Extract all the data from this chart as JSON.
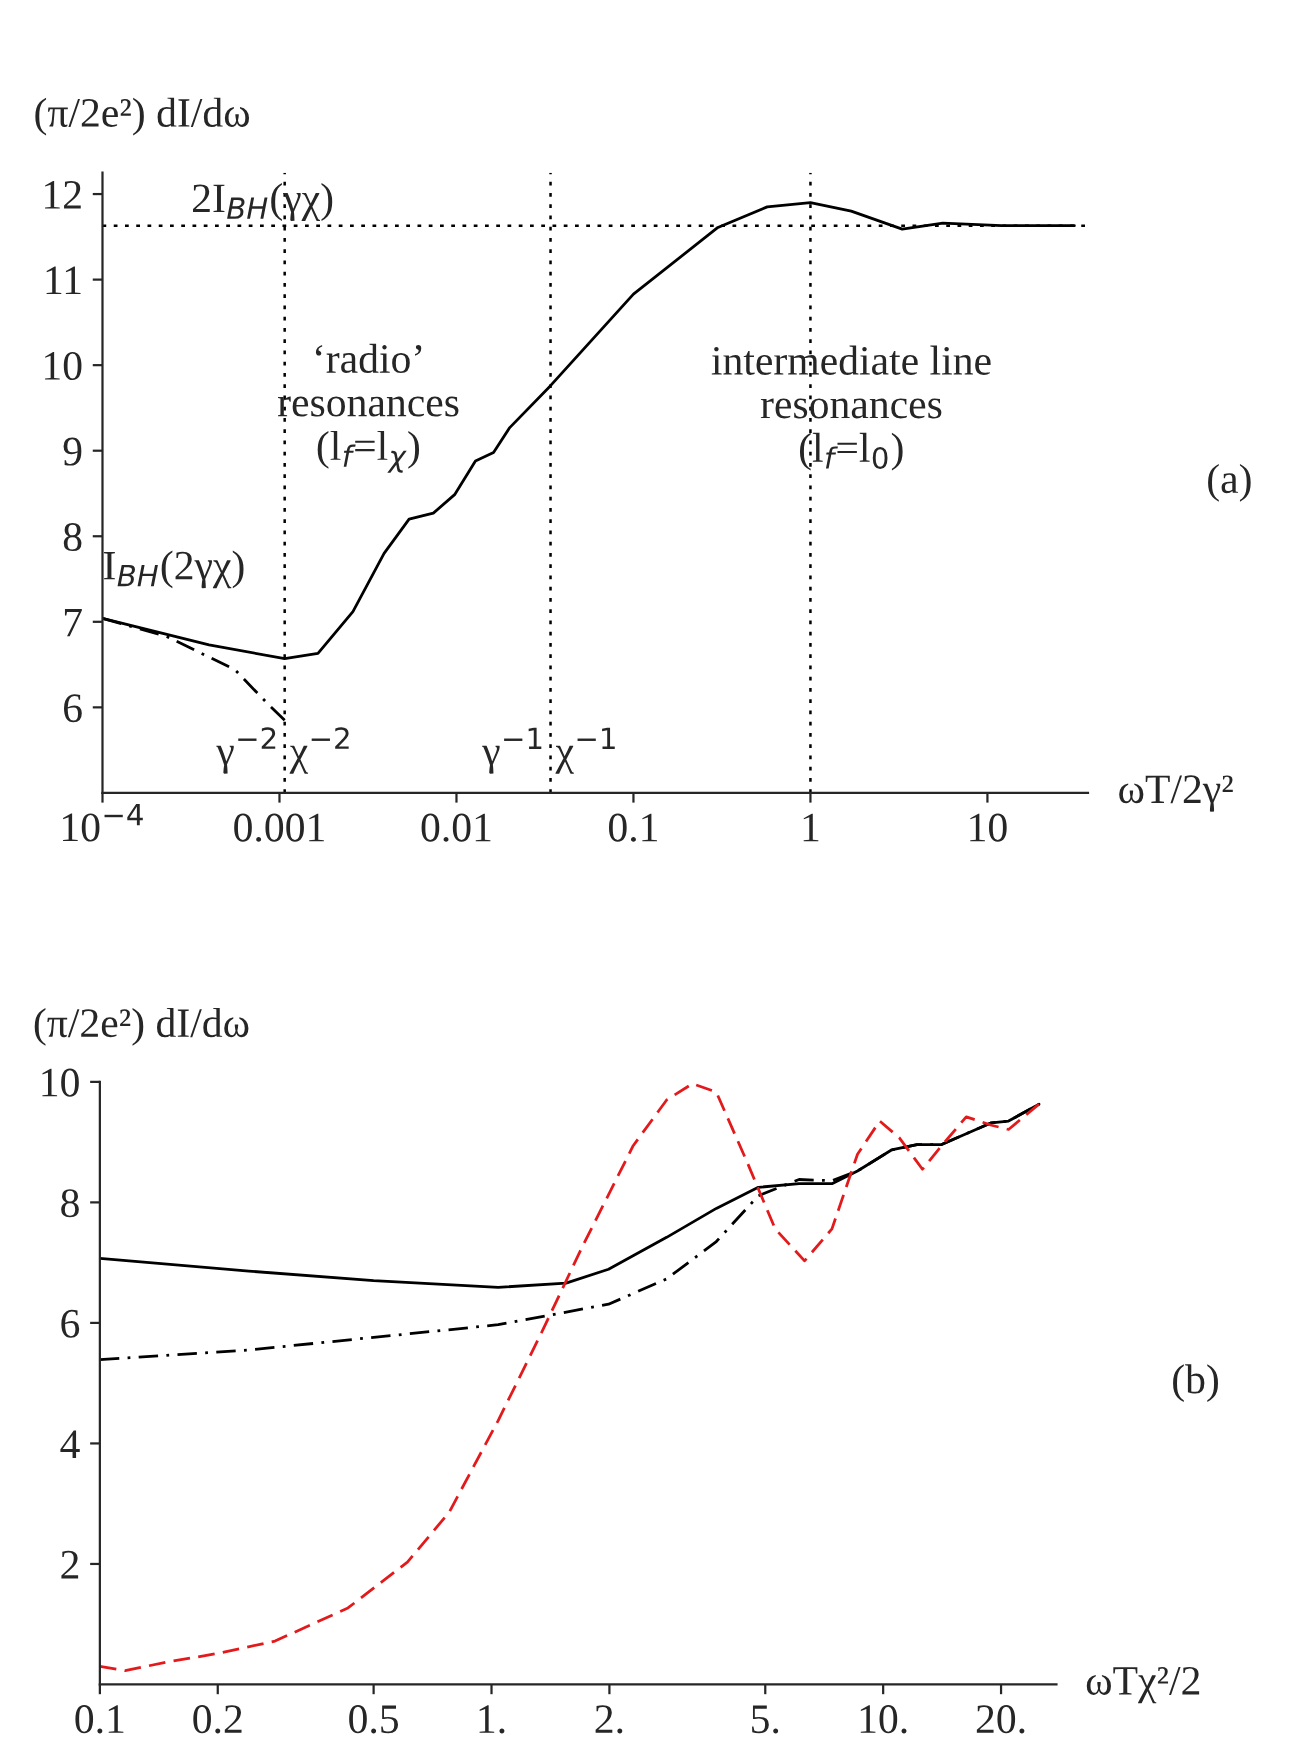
{
  "chart_data": [
    {
      "type": "line",
      "ylabel": "(π/2e²) dI/dω",
      "xlabel": "ωT/2γ²",
      "log": "x",
      "xlim": [
        0.0001,
        37
      ],
      "ylim": [
        5,
        12.25
      ],
      "xticks": [
        {
          "value": 0.0001,
          "label": "10$^{−4}$"
        },
        0.001,
        0.01,
        0.1,
        1,
        10
      ],
      "yticks": [
        6,
        7,
        8,
        9,
        10,
        11,
        12
      ],
      "grid": false,
      "legend": false,
      "series": [
        {
          "color": "#000000",
          "line_style": "solid",
          "x": [
            0.0001,
            0.0004,
            0.00107,
            0.00165,
            0.0026,
            0.0039,
            0.0054,
            0.0074,
            0.0098,
            0.0128,
            0.0162,
            0.02,
            0.034,
            0.1,
            0.3,
            0.57,
            1,
            1.7,
            3.3,
            5.6,
            12,
            31
          ],
          "values": [
            7.04,
            6.73,
            6.57,
            6.63,
            7.12,
            7.8,
            8.2,
            8.27,
            8.49,
            8.88,
            8.98,
            9.27,
            9.76,
            10.83,
            11.61,
            11.85,
            11.9,
            11.8,
            11.59,
            11.66,
            11.63,
            11.63
          ]
        },
        {
          "color": "#000000",
          "line_style": "dashdot",
          "x": [
            0.0001,
            0.00023,
            0.00056,
            0.00085,
            0.00107
          ],
          "values": [
            7.04,
            6.83,
            6.44,
            6.05,
            5.85
          ]
        }
      ],
      "ref_lines": [
        {
          "axis": "y",
          "value": 11.63,
          "label": "2I$_{BH}$(γχ)",
          "line_style": "dotted"
        },
        {
          "axis": "x",
          "value": 0.00107,
          "label": "γ$^{−2}$ χ$^{−2}$",
          "line_style": "dotted"
        },
        {
          "axis": "x",
          "value": 0.034,
          "label": "γ$^{−1}$ χ$^{−1}$",
          "line_style": "dotted"
        },
        {
          "axis": "x",
          "value": 1,
          "line_style": "dotted"
        }
      ],
      "annotations": [
        "I$_{BH}$(2γχ)",
        "‘radio’\nresonances\n(l$_{f}$=l$_{χ}$)",
        "intermediate line\nresonances\n(l$_{f}$=l$_{0}$)",
        "(a)"
      ]
    },
    {
      "type": "line",
      "ylabel": "(π/2e²) dI/dω",
      "xlabel": "ωTχ²/2",
      "log": "x",
      "xlim": [
        0.1,
        27.7
      ],
      "ylim": [
        0,
        10
      ],
      "xticks": [
        0.1,
        0.2,
        0.5,
        {
          "value": 1,
          "label": "1."
        },
        {
          "value": 2,
          "label": "2."
        },
        {
          "value": 5,
          "label": "5."
        },
        {
          "value": 10,
          "label": "10."
        },
        {
          "value": 20,
          "label": "20."
        }
      ],
      "yticks": [
        2,
        4,
        6,
        8,
        10
      ],
      "grid": false,
      "legend": false,
      "series": [
        {
          "color": "#000000",
          "line_style": "solid",
          "x": [
            0.1,
            0.24,
            0.5,
            1.04,
            1.55,
            1.99,
            2.8,
            3.75,
            4.8,
            6.1,
            7.4,
            8.6,
            10.5,
            12.2,
            14.1,
            16.3,
            18.9,
            20.9,
            25
          ],
          "values": [
            7.07,
            6.86,
            6.7,
            6.59,
            6.66,
            6.89,
            7.42,
            7.9,
            8.25,
            8.31,
            8.31,
            8.52,
            8.87,
            8.96,
            8.96,
            9.14,
            9.32,
            9.35,
            9.63
          ]
        },
        {
          "color": "#000000",
          "line_style": "dashdot",
          "x": [
            0.1,
            0.24,
            0.5,
            1.04,
            1.99,
            2.8,
            3.75,
            4.8,
            6.1,
            7.4,
            8.6,
            10.5,
            12.2,
            14.1,
            16.3,
            18.9,
            20.9,
            25
          ],
          "values": [
            5.39,
            5.55,
            5.76,
            5.97,
            6.31,
            6.73,
            7.35,
            8.11,
            8.38,
            8.36,
            8.52,
            8.87,
            8.96,
            8.96,
            9.14,
            9.32,
            9.35,
            9.63
          ]
        },
        {
          "color": "#e31a1c",
          "line_style": "dashed",
          "x": [
            0.1,
            0.116,
            0.148,
            0.198,
            0.28,
            0.43,
            0.61,
            0.78,
            1.04,
            1.34,
            1.71,
            2.3,
            2.8,
            3.26,
            3.75,
            4.5,
            5.3,
            6.3,
            7.4,
            8.6,
            9.8,
            11.0,
            12.6,
            14.1,
            16.3,
            18.9,
            20.9,
            25
          ],
          "values": [
            0.3,
            0.23,
            0.37,
            0.51,
            0.72,
            1.27,
            2.03,
            2.86,
            4.38,
            5.83,
            7.28,
            8.94,
            9.7,
            9.97,
            9.83,
            8.66,
            7.56,
            7.03,
            7.56,
            8.8,
            9.35,
            9.07,
            8.55,
            8.94,
            9.42,
            9.28,
            9.21,
            9.63
          ]
        }
      ],
      "annotations": [
        "(b)"
      ]
    }
  ]
}
